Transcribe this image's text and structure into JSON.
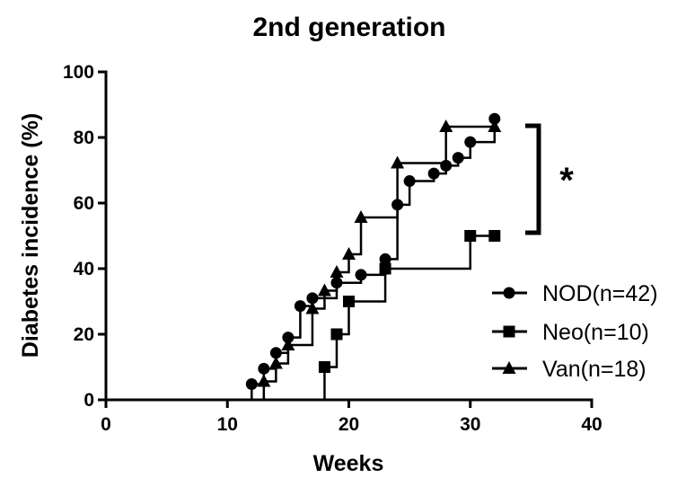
{
  "chart_data": {
    "type": "line",
    "title": "2nd generation",
    "xlabel": "Weeks",
    "ylabel": "Diabetes incidence  (%)",
    "xlim": [
      0,
      40
    ],
    "ylim": [
      0,
      100
    ],
    "xticks": [
      "0",
      "10",
      "20",
      "30",
      "40"
    ],
    "yticks": [
      "0",
      "20",
      "40",
      "60",
      "80",
      "100"
    ],
    "grid": false,
    "legend_position": "right",
    "significance_label": "*",
    "series": [
      {
        "name": "NOD(n=42)",
        "marker": "circle",
        "x": [
          12,
          13,
          14,
          15,
          16,
          17,
          19,
          21,
          23,
          24,
          25,
          27,
          28,
          29,
          30,
          32
        ],
        "y": [
          4.8,
          9.5,
          14.3,
          19.0,
          28.6,
          31.0,
          35.7,
          38.1,
          42.9,
          59.5,
          66.7,
          69.0,
          71.4,
          73.8,
          78.6,
          85.7
        ]
      },
      {
        "name": "Neo(n=10)",
        "marker": "square",
        "x": [
          18,
          19,
          20,
          23,
          30,
          32
        ],
        "y": [
          10,
          20,
          30,
          40,
          50,
          50
        ]
      },
      {
        "name": "Van(n=18)",
        "marker": "triangle",
        "x": [
          13,
          14,
          15,
          17,
          18,
          19,
          20,
          21,
          24,
          28,
          32
        ],
        "y": [
          5.6,
          11.1,
          16.7,
          27.8,
          33.3,
          38.9,
          44.4,
          55.6,
          72.2,
          83.3,
          83.3
        ]
      }
    ]
  }
}
